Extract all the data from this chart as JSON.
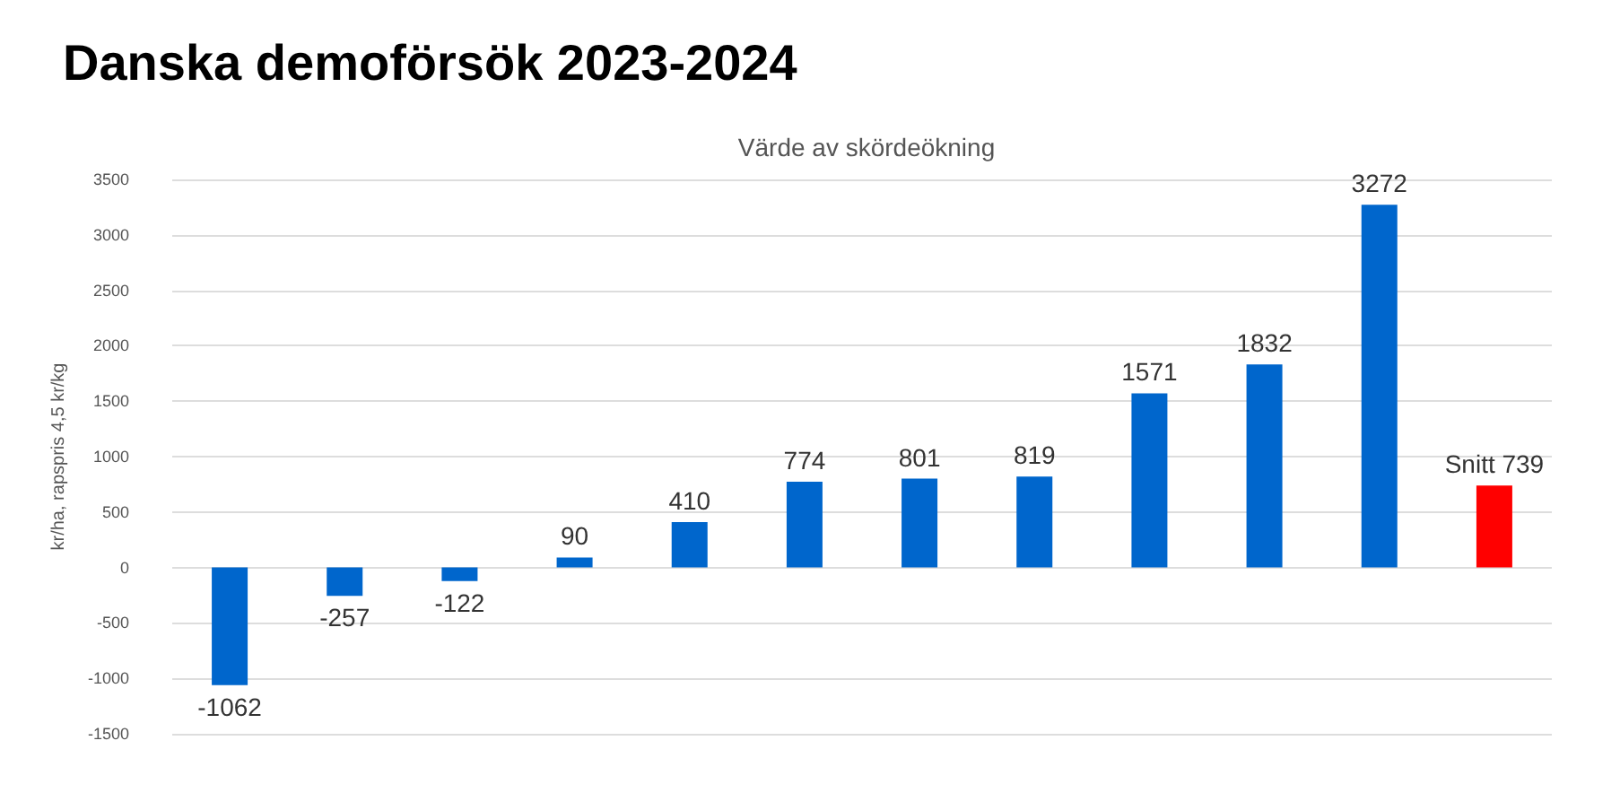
{
  "chart_data": {
    "type": "bar",
    "title": "Danska demoförsök 2023-2024",
    "subtitle": "Värde av skördeökning",
    "ylabel": "kr/ha, rapspris 4,5 kr/kg",
    "categories": [
      null,
      null,
      null,
      null,
      null,
      null,
      null,
      null,
      null,
      null,
      null,
      null
    ],
    "values": [
      -1062,
      -257,
      -122,
      90,
      410,
      774,
      801,
      819,
      1571,
      1832,
      3272,
      739
    ],
    "colors": [
      "#0066cc",
      "#0066cc",
      "#0066cc",
      "#0066cc",
      "#0066cc",
      "#0066cc",
      "#0066cc",
      "#0066cc",
      "#0066cc",
      "#0066cc",
      "#0066cc",
      "#ff0000"
    ],
    "value_labels": [
      "-1062",
      "-257",
      "-122",
      "90",
      "410",
      "774",
      "801",
      "819",
      "1571",
      "1832",
      "3272",
      "Snitt 739"
    ],
    "ylim": [
      -1500,
      3500
    ],
    "yticks": [
      -1500,
      -1000,
      -500,
      0,
      500,
      1000,
      1500,
      2000,
      2500,
      3000,
      3500
    ],
    "grid": "y"
  }
}
